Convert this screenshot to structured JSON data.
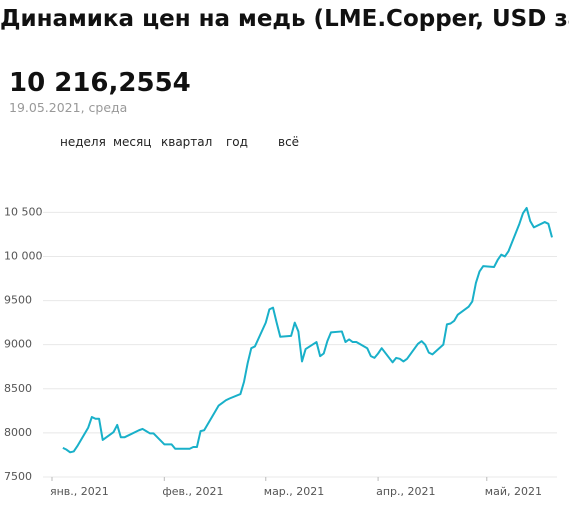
{
  "chart_data": {
    "type": "line",
    "title": "Динамика цен на медь (LME.Copper, USD за",
    "headline": "10 216,2554",
    "headline_date": "19.05.2021, среда",
    "range_tabs": [
      "неделя",
      "месяц",
      "квартал",
      "год",
      "всё"
    ],
    "x": [
      "2021-01-04",
      "2021-01-05",
      "2021-01-06",
      "2021-01-07",
      "2021-01-08",
      "2021-01-11",
      "2021-01-12",
      "2021-01-13",
      "2021-01-14",
      "2021-01-15",
      "2021-01-18",
      "2021-01-19",
      "2021-01-20",
      "2021-01-21",
      "2021-01-22",
      "2021-01-25",
      "2021-01-26",
      "2021-01-27",
      "2021-01-28",
      "2021-01-29",
      "2021-02-01",
      "2021-02-02",
      "2021-02-03",
      "2021-02-04",
      "2021-02-05",
      "2021-02-08",
      "2021-02-09",
      "2021-02-10",
      "2021-02-11",
      "2021-02-12",
      "2021-02-15",
      "2021-02-16",
      "2021-02-17",
      "2021-02-18",
      "2021-02-19",
      "2021-02-22",
      "2021-02-23",
      "2021-02-24",
      "2021-02-25",
      "2021-02-26",
      "2021-03-01",
      "2021-03-02",
      "2021-03-03",
      "2021-03-04",
      "2021-03-05",
      "2021-03-08",
      "2021-03-09",
      "2021-03-10",
      "2021-03-11",
      "2021-03-12",
      "2021-03-15",
      "2021-03-16",
      "2021-03-17",
      "2021-03-18",
      "2021-03-19",
      "2021-03-22",
      "2021-03-23",
      "2021-03-24",
      "2021-03-25",
      "2021-03-26",
      "2021-03-29",
      "2021-03-30",
      "2021-03-31",
      "2021-04-01",
      "2021-04-02",
      "2021-04-05",
      "2021-04-06",
      "2021-04-07",
      "2021-04-08",
      "2021-04-09",
      "2021-04-12",
      "2021-04-13",
      "2021-04-14",
      "2021-04-15",
      "2021-04-16",
      "2021-04-19",
      "2021-04-20",
      "2021-04-21",
      "2021-04-22",
      "2021-04-23",
      "2021-04-26",
      "2021-04-27",
      "2021-04-28",
      "2021-04-29",
      "2021-04-30",
      "2021-05-03",
      "2021-05-04",
      "2021-05-05",
      "2021-05-06",
      "2021-05-07",
      "2021-05-10",
      "2021-05-11",
      "2021-05-12",
      "2021-05-13",
      "2021-05-14",
      "2021-05-17",
      "2021-05-18",
      "2021-05-19"
    ],
    "series": [
      {
        "color": "#19b0c9",
        "values": [
          7830,
          7810,
          7780,
          7790,
          7850,
          8060,
          8180,
          8160,
          8160,
          7920,
          8010,
          8090,
          7950,
          7950,
          7970,
          8030,
          8045,
          8020,
          7995,
          7995,
          7870,
          7870,
          7870,
          7820,
          7820,
          7820,
          7840,
          7840,
          8020,
          8030,
          8240,
          8310,
          8340,
          8370,
          8390,
          8440,
          8580,
          8790,
          8960,
          8980,
          9250,
          9400,
          9420,
          9250,
          9090,
          9100,
          9250,
          9150,
          8810,
          8950,
          9030,
          8870,
          8900,
          9040,
          9140,
          9150,
          9030,
          9060,
          9030,
          9030,
          8960,
          8870,
          8850,
          8900,
          8960,
          8800,
          8850,
          8840,
          8810,
          8840,
          9010,
          9040,
          9000,
          8910,
          8890,
          9000,
          9230,
          9240,
          9270,
          9340,
          9430,
          9490,
          9700,
          9830,
          9890,
          9880,
          9960,
          10020,
          10000,
          10060,
          10370,
          10490,
          10550,
          10400,
          10330,
          10390,
          10370,
          10216.2554
        ]
      }
    ],
    "xlim": [
      "2021-01-01",
      "2021-05-19"
    ],
    "xticks": [
      {
        "value": "2021-01-01",
        "label": "янв., 2021"
      },
      {
        "value": "2021-02-01",
        "label": "фев., 2021"
      },
      {
        "value": "2021-03-01",
        "label": "мар., 2021"
      },
      {
        "value": "2021-04-01",
        "label": "апр., 2021"
      },
      {
        "value": "2021-05-01",
        "label": "май, 2021"
      }
    ],
    "ylim": [
      7500,
      10640
    ],
    "yticks": [
      7500,
      8000,
      8500,
      9000,
      9500,
      {
        "value": 10000,
        "label": "10 000"
      },
      {
        "value": 10500,
        "label": "10 500"
      }
    ],
    "grid": true
  }
}
